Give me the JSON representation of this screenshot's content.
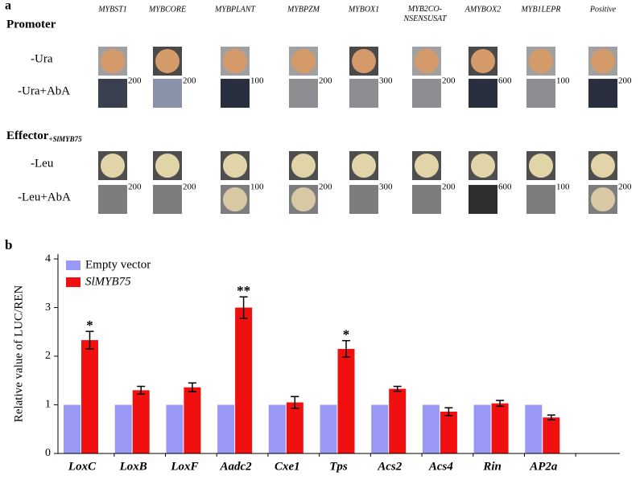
{
  "panel_a": {
    "label": "a",
    "promoter_label": "Promoter",
    "columns": [
      "MYBST1",
      "MYBCORE",
      "MYBPLANT",
      "MYBPZM",
      "MYBOX1",
      "MYB2CO-NSENSUSAT",
      "AMYBOX2",
      "MYB1LEPR",
      "Positive"
    ],
    "effector_label": "Effector",
    "effector_subscript": "+SlMYB75",
    "rows": [
      {
        "label": "-Ura"
      },
      {
        "label": "-Ura+AbA",
        "concentrations": [
          "200",
          "200",
          "100",
          "200",
          "300",
          "200",
          "600",
          "100",
          "200"
        ]
      },
      {
        "label": "-Leu"
      },
      {
        "label": "-Leu+AbA",
        "concentrations": [
          "200",
          "200",
          "100",
          "200",
          "300",
          "200",
          "600",
          "100",
          "200"
        ]
      }
    ]
  },
  "chart_data": {
    "type": "bar",
    "label": "b",
    "y_label": "Relative value of LUC/REN",
    "categories": [
      "LoxC",
      "LoxB",
      "LoxF",
      "Aadc2",
      "Cxe1",
      "Tps",
      "Acs2",
      "Acs4",
      "Rin",
      "AP2a"
    ],
    "series": [
      {
        "name": "Empty vector",
        "color": "#9999f5",
        "values": [
          1,
          1,
          1,
          1,
          1,
          1,
          1,
          1,
          1,
          1
        ]
      },
      {
        "name": "SlMYB75",
        "color": "#f01010",
        "values": [
          2.33,
          1.3,
          1.36,
          3.0,
          1.05,
          2.15,
          1.33,
          0.86,
          1.03,
          0.74
        ],
        "errors": [
          0.18,
          0.08,
          0.09,
          0.22,
          0.12,
          0.17,
          0.05,
          0.08,
          0.06,
          0.05
        ],
        "significance": [
          "*",
          null,
          null,
          "**",
          null,
          "*",
          null,
          null,
          null,
          null
        ]
      }
    ],
    "ylim": [
      0,
      4.1
    ],
    "yticks": [
      0,
      1,
      2,
      3,
      4
    ],
    "legend": "top-left"
  }
}
